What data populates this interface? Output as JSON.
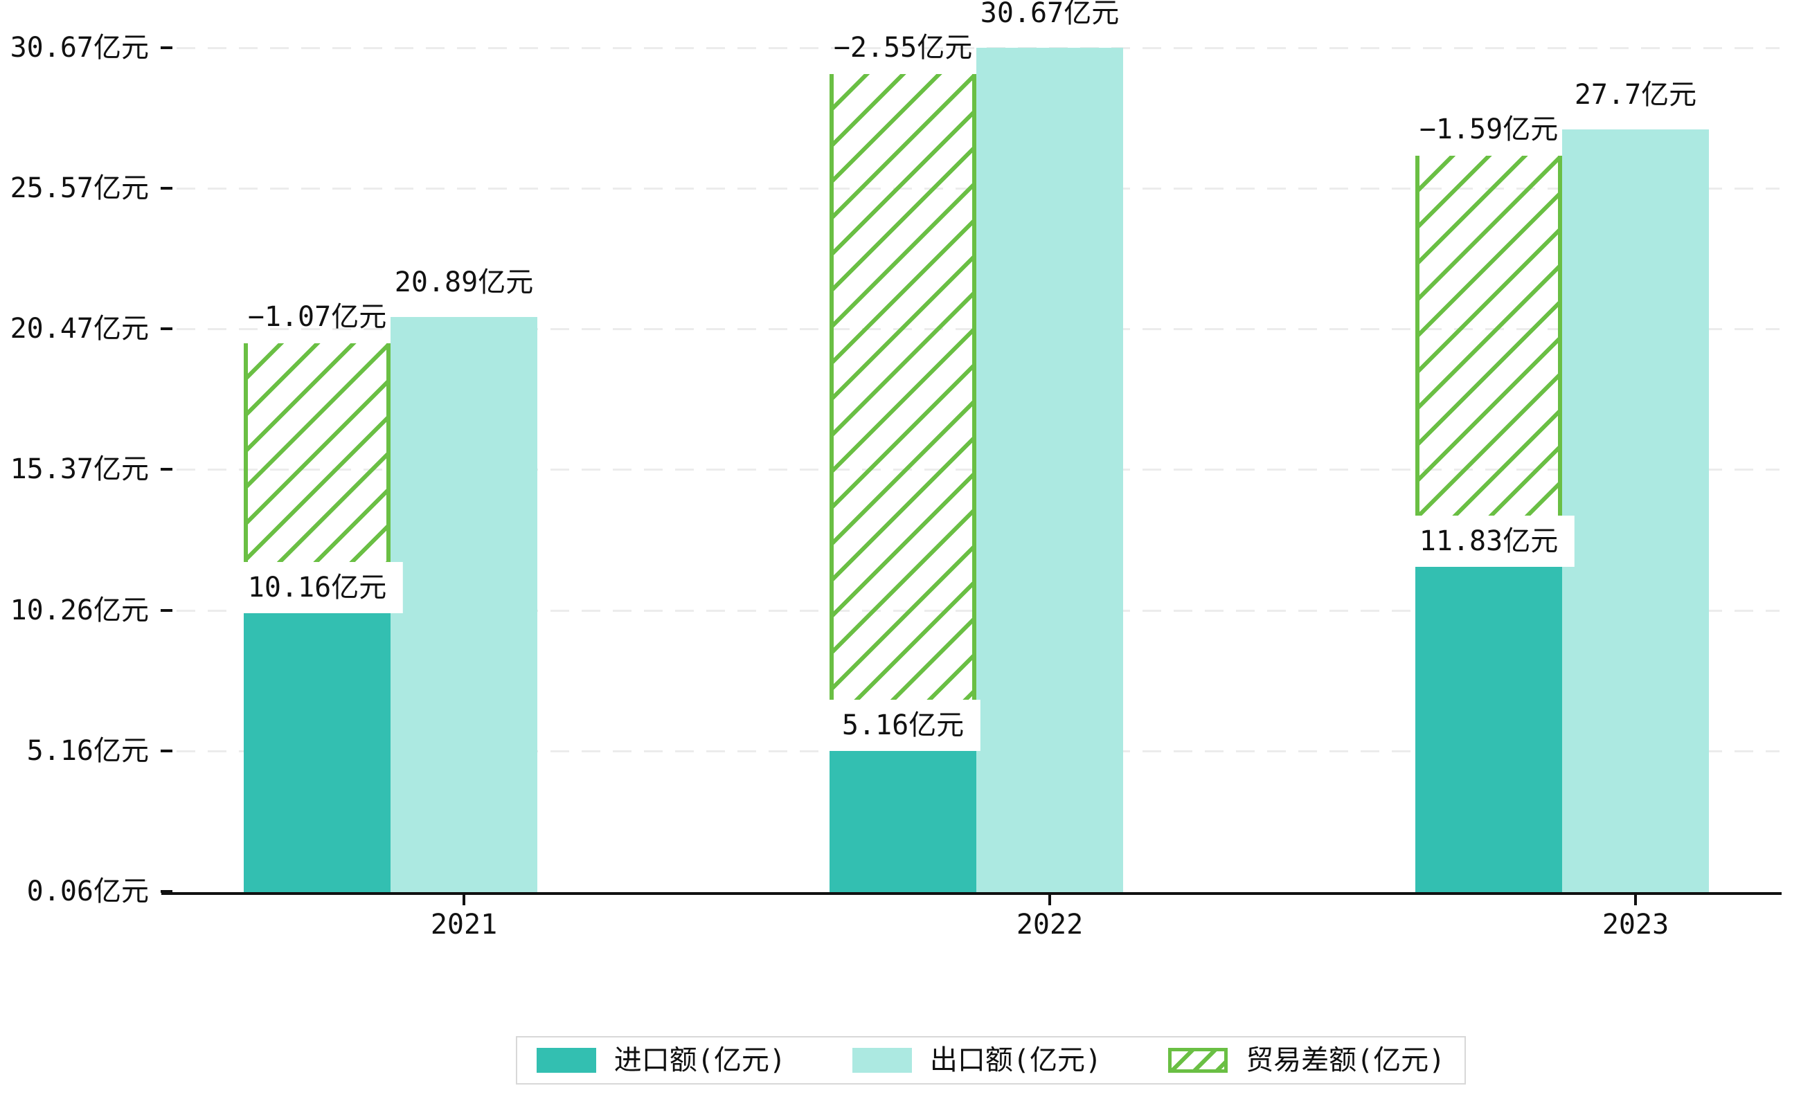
{
  "chart_data": {
    "type": "bar",
    "title": "",
    "xlabel": "",
    "ylabel": "",
    "unit": "亿元",
    "categories": [
      "2021",
      "2022",
      "2023"
    ],
    "series": [
      {
        "name": "进口额(亿元)",
        "role": "import",
        "values": [
          10.16,
          5.16,
          11.83
        ],
        "labels": [
          "10.16亿元",
          "5.16亿元",
          "11.83亿元"
        ],
        "color": "#33bfb1",
        "style": "solid"
      },
      {
        "name": "出口额(亿元)",
        "role": "export",
        "values": [
          20.89,
          30.67,
          27.7
        ],
        "labels": [
          "20.89亿元",
          "30.67亿元",
          "27.7亿元"
        ],
        "color": "#ace9e1",
        "style": "solid"
      },
      {
        "name": "贸易差额(亿元)",
        "role": "trade-balance",
        "values": [
          -1.07,
          -2.55,
          -1.59
        ],
        "labels": [
          "−1.07亿元",
          "−2.55亿元",
          "−1.59亿元"
        ],
        "color": "#6abf44",
        "style": "hatched",
        "render_note": "floating hatched bar drawn over the import column, spanning from the import bar top up to just below the export bar top"
      }
    ],
    "y_axis": {
      "tick_values": [
        0.06,
        5.16,
        10.26,
        15.37,
        20.47,
        25.57,
        30.67
      ],
      "tick_labels": [
        "0.06亿元",
        "5.16亿元",
        "10.26亿元",
        "15.37亿元",
        "20.47亿元",
        "25.57亿元",
        "30.67亿元"
      ],
      "min": 0.06,
      "max": 30.67,
      "grid": "horizontal-dashed"
    },
    "legend_position": "bottom-center",
    "colors": {
      "axis": "#111111",
      "gridline": "#ececec",
      "legend_border": "#d8d8d8",
      "background": "#ffffff"
    }
  }
}
